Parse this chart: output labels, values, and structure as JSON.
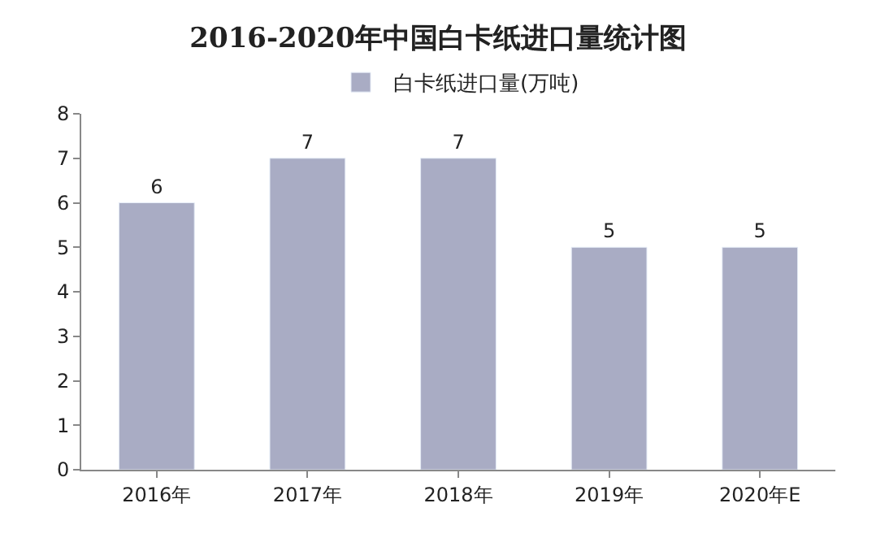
{
  "chart_data": {
    "type": "bar",
    "title": "2016-2020年中国白卡纸进口量统计图",
    "categories": [
      "2016年",
      "2017年",
      "2018年",
      "2019年",
      "2020年E"
    ],
    "series": [
      {
        "name": "白卡纸进口量(万吨)",
        "color": "#a9acc4",
        "values": [
          6,
          7,
          7,
          5,
          5
        ]
      }
    ],
    "ylim": [
      0,
      8
    ],
    "yticks": [
      0,
      1,
      2,
      3,
      4,
      5,
      6,
      7,
      8
    ],
    "grid": false,
    "legend": "top",
    "data_labels": true
  }
}
